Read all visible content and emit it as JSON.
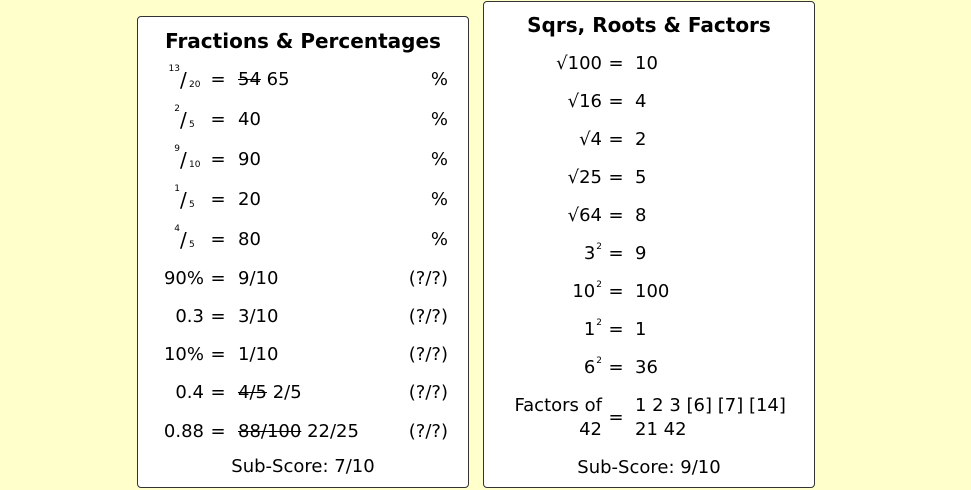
{
  "left_card": {
    "title": "Fractions & Percentages",
    "rows": [
      {
        "num": "13",
        "den": "20",
        "eq": "=",
        "struck": "54",
        "answer": "65",
        "unit": "%"
      },
      {
        "num": "2",
        "den": "5",
        "eq": "=",
        "answer": "40",
        "unit": "%"
      },
      {
        "num": "9",
        "den": "10",
        "eq": "=",
        "answer": "90",
        "unit": "%"
      },
      {
        "num": "1",
        "den": "5",
        "eq": "=",
        "answer": "20",
        "unit": "%"
      },
      {
        "num": "4",
        "den": "5",
        "eq": "=",
        "answer": "80",
        "unit": "%"
      },
      {
        "lhs": "90%",
        "eq": "=",
        "answer": "9/10",
        "unit": "(?/?)"
      },
      {
        "lhs": "0.3",
        "eq": "=",
        "answer": "3/10",
        "unit": "(?/?)"
      },
      {
        "lhs": "10%",
        "eq": "=",
        "answer": "1/10",
        "unit": "(?/?)"
      },
      {
        "lhs": "0.4",
        "eq": "=",
        "struck": "4/5",
        "answer": "2/5",
        "unit": "(?/?)"
      },
      {
        "lhs": "0.88",
        "eq": "=",
        "struck": "88/100",
        "answer": "22/25",
        "unit": "(?/?)"
      }
    ],
    "subscore": "Sub-Score: 7/10"
  },
  "right_card": {
    "title": "Sqrs, Roots & Factors",
    "rows": [
      {
        "lhs": "√100",
        "eq": "=",
        "answer": "10"
      },
      {
        "lhs": "√16",
        "eq": "=",
        "answer": "4"
      },
      {
        "lhs": "√4",
        "eq": "=",
        "answer": "2"
      },
      {
        "lhs": "√25",
        "eq": "=",
        "answer": "5"
      },
      {
        "lhs": "√64",
        "eq": "=",
        "answer": "8"
      },
      {
        "base": "3",
        "power": "2",
        "eq": "=",
        "answer": "9"
      },
      {
        "base": "10",
        "power": "2",
        "eq": "=",
        "answer": "100"
      },
      {
        "base": "1",
        "power": "2",
        "eq": "=",
        "answer": "1"
      },
      {
        "base": "6",
        "power": "2",
        "eq": "=",
        "answer": "36"
      }
    ],
    "factors": {
      "label_line1": "Factors of",
      "label_line2": "42",
      "eq": "=",
      "line1": "1 2 3 [6] [7] [14]",
      "line2": "21 42"
    },
    "subscore": "Sub-Score: 9/10"
  }
}
